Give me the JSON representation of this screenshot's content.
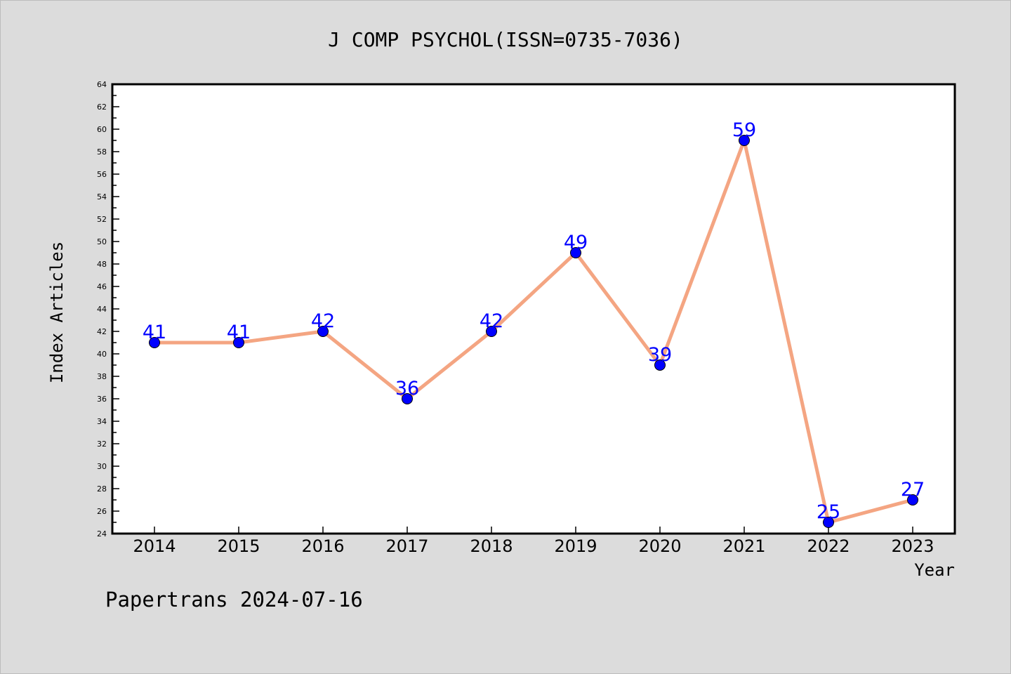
{
  "chart_data": {
    "type": "line",
    "title": "J COMP PSYCHOL(ISSN=0735-7036)",
    "xlabel": "Year",
    "ylabel": "Index Articles",
    "categories": [
      "2014",
      "2015",
      "2016",
      "2017",
      "2018",
      "2019",
      "2020",
      "2021",
      "2022",
      "2023"
    ],
    "series": [
      {
        "values": [
          41,
          41,
          42,
          36,
          42,
          49,
          39,
          59,
          25,
          27
        ]
      }
    ],
    "ylim": [
      24,
      64
    ],
    "y_major_step": 2,
    "y_minor_step": 1,
    "grid": false,
    "line_color": "#f4a582",
    "marker_color": "#0000ff",
    "label_color": "#0000ff",
    "data_labels": true
  },
  "footer": {
    "watermark": "Papertrans 2024-07-16"
  },
  "colors": {
    "background": "#dcdcdc",
    "plot_background": "#ffffff",
    "frame": "#000000"
  }
}
